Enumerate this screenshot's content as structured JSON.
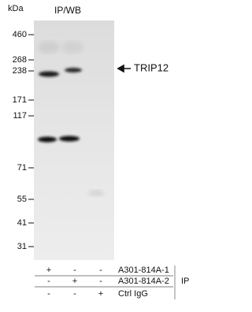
{
  "title": "IP/WB",
  "unit": "kDa",
  "markers": [
    460,
    268,
    238,
    171,
    117,
    71,
    55,
    41,
    31
  ],
  "target": "TRIP12",
  "table": {
    "rows": [
      {
        "cells": [
          "+",
          "-",
          "-"
        ],
        "label": "A301-814A-1"
      },
      {
        "cells": [
          "-",
          "+",
          "-"
        ],
        "label": "A301-814A-2"
      },
      {
        "cells": [
          "-",
          "-",
          "+"
        ],
        "label": "Ctrl IgG"
      }
    ]
  },
  "group": "IP"
}
